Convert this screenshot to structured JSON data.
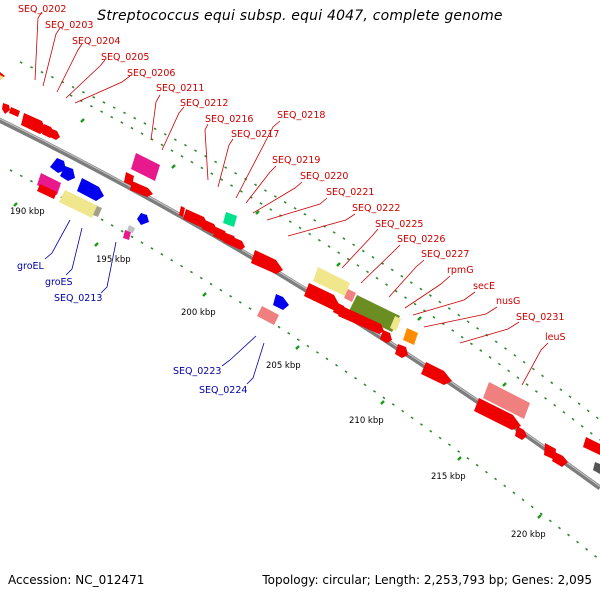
{
  "title": "Streptococcus equi subsp. equi 4047, complete genome",
  "footer": {
    "accession": "Accession: NC_012471",
    "summary": "Topology: circular; Length: 2,253,793 bp; Genes: 2,095"
  },
  "kbp_labels": [
    "190 kbp",
    "195 kbp",
    "200 kbp",
    "205 kbp",
    "210 kbp",
    "215 kbp",
    "220 kbp"
  ],
  "red_labels": [
    "SEQ_0202",
    "SEQ_0203",
    "SEQ_0204",
    "SEQ_0205",
    "SEQ_0206",
    "SEQ_0211",
    "SEQ_0212",
    "SEQ_0216",
    "SEQ_0217",
    "SEQ_0218",
    "SEQ_0219",
    "SEQ_0220",
    "SEQ_0221",
    "SEQ_0222",
    "SEQ_0225",
    "SEQ_0226",
    "SEQ_0227",
    "rpmG",
    "secE",
    "nusG",
    "SEQ_0231",
    "leuS"
  ],
  "blue_labels": [
    "groEL",
    "groES",
    "SEQ_0213",
    "SEQ_0223",
    "SEQ_0224"
  ],
  "colors": {
    "backbone": "#8a8a8a",
    "label_red": "#cc0000",
    "label_blue": "#0000aa",
    "gene_red": "#ee0000",
    "gene_blue": "#0000ee",
    "gene_pink": "#e8198c",
    "gene_salmon": "#f08080",
    "gene_khaki": "#f0e68c",
    "gene_olive": "#6b8e23",
    "gene_orange": "#ff8c00",
    "gene_green": "#00e38c",
    "tick_green": "#008800"
  }
}
